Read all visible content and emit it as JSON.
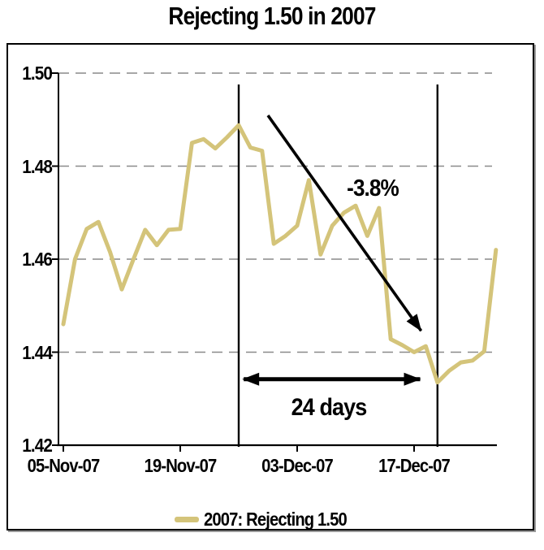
{
  "title": "Rejecting 1.50 in 2007",
  "colors": {
    "series": "#d4c47a",
    "grid": "#8a8a8a",
    "axis": "#000000",
    "annotation": "#000000",
    "background": "#ffffff"
  },
  "chart_data": {
    "type": "line",
    "title": "Rejecting 1.50 in 2007",
    "xlabel": "",
    "ylabel": "",
    "ylim": [
      1.42,
      1.5
    ],
    "y_ticks": [
      1.5,
      1.48,
      1.46,
      1.44,
      1.42
    ],
    "y_tick_labels": [
      "1.50",
      "1.48",
      "1.46",
      "1.44",
      "1.42"
    ],
    "x_tick_indices": [
      0,
      10,
      20,
      30
    ],
    "x_tick_labels": [
      "05-Nov-07",
      "19-Nov-07",
      "03-Dec-07",
      "17-Dec-07"
    ],
    "grid": "horizontal-dashed",
    "legend_position": "bottom-center",
    "categories": [
      "05-Nov-07",
      "06-Nov-07",
      "07-Nov-07",
      "08-Nov-07",
      "09-Nov-07",
      "12-Nov-07",
      "13-Nov-07",
      "14-Nov-07",
      "15-Nov-07",
      "16-Nov-07",
      "19-Nov-07",
      "20-Nov-07",
      "21-Nov-07",
      "22-Nov-07",
      "23-Nov-07",
      "26-Nov-07",
      "27-Nov-07",
      "28-Nov-07",
      "29-Nov-07",
      "30-Nov-07",
      "03-Dec-07",
      "04-Dec-07",
      "05-Dec-07",
      "06-Dec-07",
      "07-Dec-07",
      "10-Dec-07",
      "11-Dec-07",
      "12-Dec-07",
      "13-Dec-07",
      "14-Dec-07",
      "17-Dec-07",
      "18-Dec-07",
      "19-Dec-07",
      "20-Dec-07",
      "21-Dec-07",
      "24-Dec-07",
      "26-Dec-07",
      "27-Dec-07"
    ],
    "series": [
      {
        "name": "2007: Rejecting 1.50",
        "color": "#d4c47a",
        "values": [
          1.446,
          1.46,
          1.4665,
          1.468,
          1.4615,
          1.4535,
          1.46,
          1.4663,
          1.463,
          1.4663,
          1.4665,
          1.485,
          1.4858,
          1.4838,
          1.4862,
          1.4888,
          1.484,
          1.4833,
          1.4633,
          1.465,
          1.4672,
          1.477,
          1.461,
          1.4672,
          1.47,
          1.4715,
          1.465,
          1.471,
          1.4428,
          1.4415,
          1.44,
          1.4413,
          1.4335,
          1.436,
          1.4378,
          1.4382,
          1.4402,
          1.462
        ]
      }
    ],
    "annotations": {
      "vertical_lines": [
        {
          "date": "26-Nov-07",
          "index": 15
        },
        {
          "date": "19-Dec-07",
          "index": 32
        }
      ],
      "decline_arrow": {
        "label": "-3.8%",
        "from": {
          "index": 17.5,
          "value": 1.4909
        },
        "to": {
          "index": 30.6,
          "value": 1.4446
        },
        "label_center": {
          "index": 26.45,
          "value": 1.475
        }
      },
      "span_arrow": {
        "label": "24 days",
        "value": 1.4342,
        "from_index": 15.15,
        "to_index": 30.8,
        "label_center": {
          "index": 22.7,
          "value": 1.4279
        }
      }
    },
    "legend": {
      "entries": [
        {
          "label": "2007: Rejecting 1.50",
          "color": "#d4c47a"
        }
      ]
    }
  }
}
